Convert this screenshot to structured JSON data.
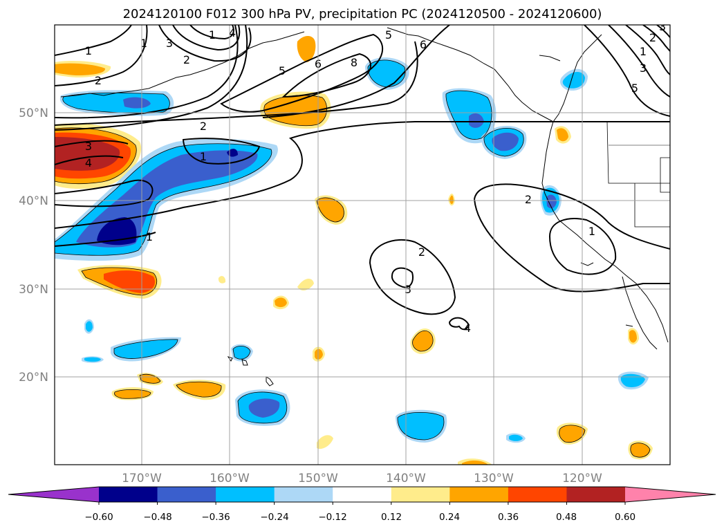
{
  "title": "2024120100 F012 300 hPa PV, precipitation PC (2024120500 - 2024120600)",
  "map": {
    "projection": "PlateCarree",
    "lon_range": [
      -180,
      -110
    ],
    "lat_range": [
      10,
      60
    ],
    "lon_ticks": [
      "170°W",
      "160°W",
      "150°W",
      "140°W",
      "130°W",
      "120°W"
    ],
    "lat_ticks": [
      "50°N",
      "40°N",
      "30°N",
      "20°N"
    ],
    "gridlines": true,
    "gridline_color": "#a0a0a0",
    "tick_label_color": "#808080"
  },
  "colorbar": {
    "orientation": "horizontal",
    "extend": "both",
    "tick_labels": [
      "−0.60",
      "−0.48",
      "−0.36",
      "−0.24",
      "−0.12",
      "0.12",
      "0.24",
      "0.36",
      "0.48",
      "0.60"
    ],
    "colors": [
      "#9932cc",
      "#00008b",
      "#3a5fcd",
      "#00bfff",
      "#add8f6",
      "#ffffff",
      "#ffec8b",
      "#ffa500",
      "#ff4500",
      "#b22222",
      "#ff82ab"
    ]
  },
  "pv_contour_labels": [
    "1",
    "2",
    "3",
    "4",
    "5",
    "6",
    "8",
    "1",
    "2",
    "1",
    "2",
    "3",
    "1",
    "1",
    "2",
    "1",
    "2",
    "3",
    "4",
    "5",
    "6",
    "5",
    "3",
    "1",
    "2",
    "3",
    "4"
  ]
}
